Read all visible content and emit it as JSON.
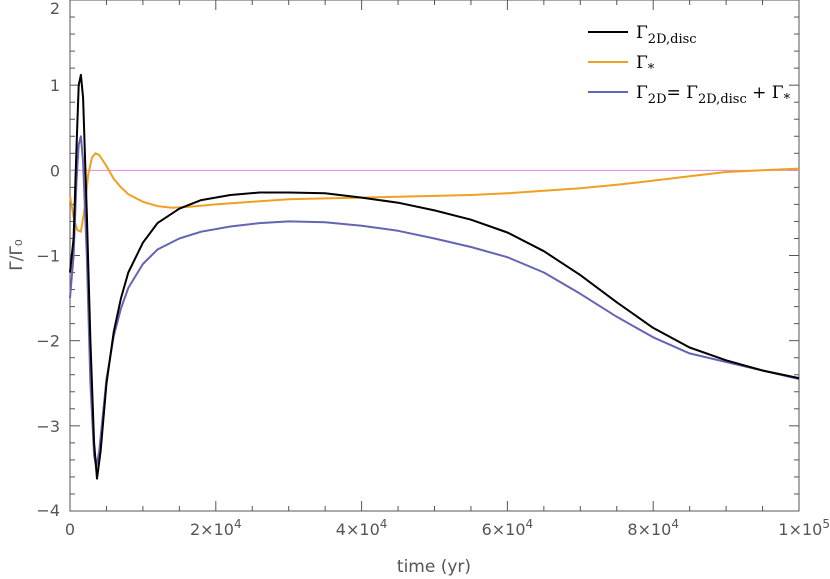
{
  "chart_data": {
    "type": "line",
    "xlabel": "time (yr)",
    "ylabel": "Γ/Γ₀",
    "xlim": [
      0,
      100000
    ],
    "ylim": [
      -4,
      2
    ],
    "x_tick_labels": [
      {
        "value": 0,
        "mant": "0",
        "exp": ""
      },
      {
        "value": 20000,
        "mant": "2×10",
        "exp": "4"
      },
      {
        "value": 40000,
        "mant": "4×10",
        "exp": "4"
      },
      {
        "value": 60000,
        "mant": "6×10",
        "exp": "4"
      },
      {
        "value": 80000,
        "mant": "8×10",
        "exp": "4"
      },
      {
        "value": 100000,
        "mant": "1×10",
        "exp": "5"
      }
    ],
    "y_tick_labels": [
      {
        "value": 2,
        "label": "2"
      },
      {
        "value": 1,
        "label": "1"
      },
      {
        "value": 0,
        "label": "0"
      },
      {
        "value": -1,
        "label": "−1"
      },
      {
        "value": -2,
        "label": "−2"
      },
      {
        "value": -3,
        "label": "−3"
      },
      {
        "value": -4,
        "label": "−4"
      }
    ],
    "reference_line": {
      "y": 0,
      "color": "#dd88dd"
    },
    "legend_position": "top-right",
    "series": [
      {
        "name": "Γ2D,disc",
        "color": "#000000",
        "points": [
          [
            0,
            -1.2
          ],
          [
            500,
            -0.8
          ],
          [
            900,
            0.3
          ],
          [
            1200,
            1.0
          ],
          [
            1500,
            1.12
          ],
          [
            1800,
            0.85
          ],
          [
            2300,
            -0.5
          ],
          [
            2800,
            -2.0
          ],
          [
            3300,
            -3.2
          ],
          [
            3700,
            -3.62
          ],
          [
            4200,
            -3.3
          ],
          [
            5000,
            -2.5
          ],
          [
            6000,
            -1.9
          ],
          [
            7000,
            -1.5
          ],
          [
            8000,
            -1.2
          ],
          [
            10000,
            -0.85
          ],
          [
            12000,
            -0.62
          ],
          [
            15000,
            -0.45
          ],
          [
            18000,
            -0.35
          ],
          [
            22000,
            -0.29
          ],
          [
            26000,
            -0.26
          ],
          [
            30000,
            -0.26
          ],
          [
            35000,
            -0.27
          ],
          [
            40000,
            -0.32
          ],
          [
            45000,
            -0.38
          ],
          [
            50000,
            -0.47
          ],
          [
            55000,
            -0.58
          ],
          [
            60000,
            -0.73
          ],
          [
            65000,
            -0.95
          ],
          [
            70000,
            -1.23
          ],
          [
            75000,
            -1.55
          ],
          [
            80000,
            -1.85
          ],
          [
            85000,
            -2.08
          ],
          [
            90000,
            -2.23
          ],
          [
            95000,
            -2.35
          ],
          [
            100000,
            -2.44
          ]
        ]
      },
      {
        "name": "Γ*",
        "color": "#f0a020",
        "points": [
          [
            0,
            -0.3
          ],
          [
            500,
            -0.55
          ],
          [
            1000,
            -0.7
          ],
          [
            1500,
            -0.72
          ],
          [
            2000,
            -0.45
          ],
          [
            2500,
            -0.05
          ],
          [
            3000,
            0.15
          ],
          [
            3500,
            0.2
          ],
          [
            4000,
            0.18
          ],
          [
            5000,
            0.05
          ],
          [
            6000,
            -0.1
          ],
          [
            7000,
            -0.2
          ],
          [
            8000,
            -0.28
          ],
          [
            10000,
            -0.37
          ],
          [
            12000,
            -0.42
          ],
          [
            14000,
            -0.44
          ],
          [
            16000,
            -0.43
          ],
          [
            20000,
            -0.4
          ],
          [
            25000,
            -0.37
          ],
          [
            30000,
            -0.34
          ],
          [
            35000,
            -0.33
          ],
          [
            40000,
            -0.32
          ],
          [
            45000,
            -0.31
          ],
          [
            50000,
            -0.3
          ],
          [
            55000,
            -0.29
          ],
          [
            60000,
            -0.27
          ],
          [
            65000,
            -0.24
          ],
          [
            70000,
            -0.21
          ],
          [
            75000,
            -0.17
          ],
          [
            80000,
            -0.12
          ],
          [
            85000,
            -0.07
          ],
          [
            90000,
            -0.02
          ],
          [
            95000,
            0.0
          ],
          [
            100000,
            0.02
          ]
        ]
      },
      {
        "name": "Γ2D= Γ2D,disc + Γ*",
        "color": "#6464b4",
        "points": [
          [
            0,
            -1.5
          ],
          [
            500,
            -1.0
          ],
          [
            900,
            -0.1
          ],
          [
            1200,
            0.3
          ],
          [
            1500,
            0.4
          ],
          [
            1800,
            0.1
          ],
          [
            2300,
            -1.0
          ],
          [
            2800,
            -2.5
          ],
          [
            3300,
            -3.35
          ],
          [
            3600,
            -3.48
          ],
          [
            4000,
            -3.3
          ],
          [
            5000,
            -2.45
          ],
          [
            6000,
            -1.95
          ],
          [
            7000,
            -1.62
          ],
          [
            8000,
            -1.38
          ],
          [
            10000,
            -1.1
          ],
          [
            12000,
            -0.93
          ],
          [
            15000,
            -0.8
          ],
          [
            18000,
            -0.72
          ],
          [
            22000,
            -0.66
          ],
          [
            26000,
            -0.62
          ],
          [
            30000,
            -0.6
          ],
          [
            35000,
            -0.61
          ],
          [
            40000,
            -0.65
          ],
          [
            45000,
            -0.71
          ],
          [
            50000,
            -0.8
          ],
          [
            55000,
            -0.9
          ],
          [
            60000,
            -1.02
          ],
          [
            65000,
            -1.2
          ],
          [
            70000,
            -1.45
          ],
          [
            75000,
            -1.72
          ],
          [
            80000,
            -1.96
          ],
          [
            85000,
            -2.15
          ],
          [
            90000,
            -2.25
          ],
          [
            95000,
            -2.35
          ],
          [
            100000,
            -2.45
          ]
        ]
      }
    ]
  }
}
